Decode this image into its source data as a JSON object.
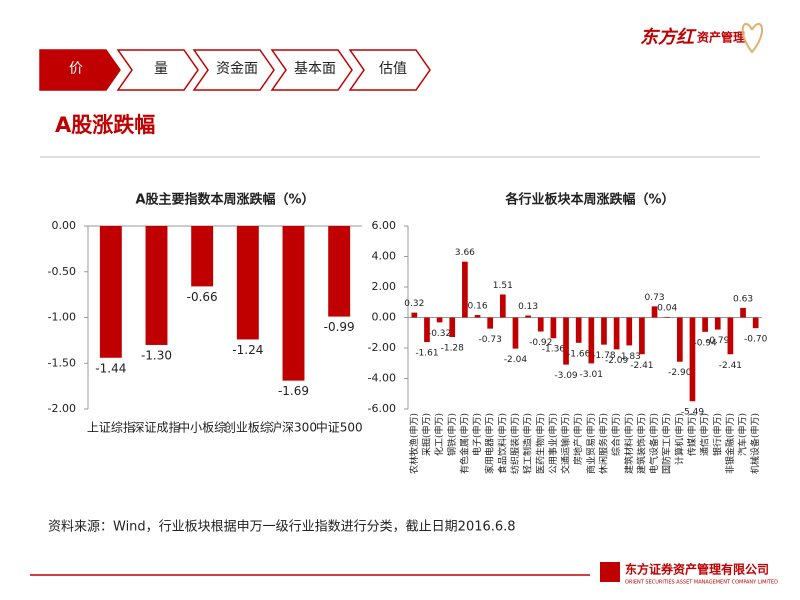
{
  "tabs": [
    "价",
    "量",
    "资金面",
    "基本面",
    "估值"
  ],
  "heading": "A股涨跌幅",
  "logo": {
    "brand": "东方红",
    "sub": "资产管理"
  },
  "source": "资料来源：Wind，行业板块根据申万一级行业指数进行分类，截止日期2016.6.8",
  "footer": {
    "name": "东方证券资产管理有限公司",
    "english": "ORIENT SECURITIES ASSET MANAGEMENT COMPANY LIMITED"
  },
  "chart_data": [
    {
      "type": "bar",
      "title": "A股主要指数本周涨跌幅（%）",
      "color": "#c00000",
      "categories": [
        "上证综指",
        "深证成指",
        "中小板综",
        "创业板综",
        "沪深300",
        "中证500"
      ],
      "values": [
        -1.44,
        -1.3,
        -0.66,
        -1.24,
        -1.69,
        -0.99
      ],
      "value_labels": [
        "-1.44",
        "-1.30",
        "-0.66",
        "-1.24",
        "-1.69",
        "-0.99"
      ],
      "ylim": [
        -2,
        0
      ],
      "yticks": [
        {
          "value": 0,
          "label": "0.00"
        },
        {
          "value": -0.5,
          "label": "-0.50"
        },
        {
          "value": -1,
          "label": "-1.00"
        },
        {
          "value": -1.5,
          "label": "-1.50"
        },
        {
          "value": -2,
          "label": "-2.00"
        }
      ]
    },
    {
      "type": "bar",
      "title": "各行业板块本周涨跌幅（%）",
      "color": "#c00000",
      "categories": [
        "农林牧渔(申万)",
        "采掘(申万)",
        "化工(申万)",
        "钢铁(申万)",
        "有色金属(申万)",
        "电子(申万)",
        "家用电器(申万)",
        "食品饮料(申万)",
        "纺织服装(申万)",
        "轻工制造(申万)",
        "医药生物(申万)",
        "公用事业(申万)",
        "交通运输(申万)",
        "房地产(申万)",
        "商业贸易(申万)",
        "休闲服务(申万)",
        "综合(申万)",
        "建筑材料(申万)",
        "建筑装饰(申万)",
        "电气设备(申万)",
        "国防军工(申万)",
        "计算机(申万)",
        "传媒(申万)",
        "通信(申万)",
        "银行(申万)",
        "非银金融(申万)",
        "汽车(申万)",
        "机械设备(申万)"
      ],
      "values": [
        0.32,
        -1.61,
        -0.32,
        -1.28,
        3.66,
        0.16,
        -0.73,
        1.51,
        -2.04,
        0.13,
        -0.92,
        -1.36,
        -3.09,
        -1.66,
        -3.01,
        -1.78,
        -2.09,
        -1.83,
        -2.41,
        0.73,
        0.04,
        -2.9,
        -5.49,
        -0.94,
        -0.79,
        -2.41,
        0.63,
        -0.7
      ],
      "value_labels": [
        "0.32",
        "-1.61",
        "-0.32",
        "-1.28",
        "3.66",
        "0.16",
        "-0.73",
        "1.51",
        "-2.04",
        "0.13",
        "-0.92",
        "-1.36",
        "-3.09",
        "-1.66",
        "-3.01",
        "-1.78",
        "-2.09",
        "-1.83",
        "-2.41",
        "0.73",
        "0.04",
        "-2.90",
        "-5.49",
        "-0.94",
        "-0.79",
        "-2.41",
        "0.63",
        "-0.70"
      ],
      "ylim": [
        -6,
        6
      ],
      "yticks": [
        {
          "value": 6,
          "label": "6.00"
        },
        {
          "value": 4,
          "label": "4.00"
        },
        {
          "value": 2,
          "label": "2.00"
        },
        {
          "value": 0,
          "label": "0.00"
        },
        {
          "value": -2,
          "label": "-2.00"
        },
        {
          "value": -4,
          "label": "-4.00"
        },
        {
          "value": -6,
          "label": "-6.00"
        }
      ]
    }
  ]
}
